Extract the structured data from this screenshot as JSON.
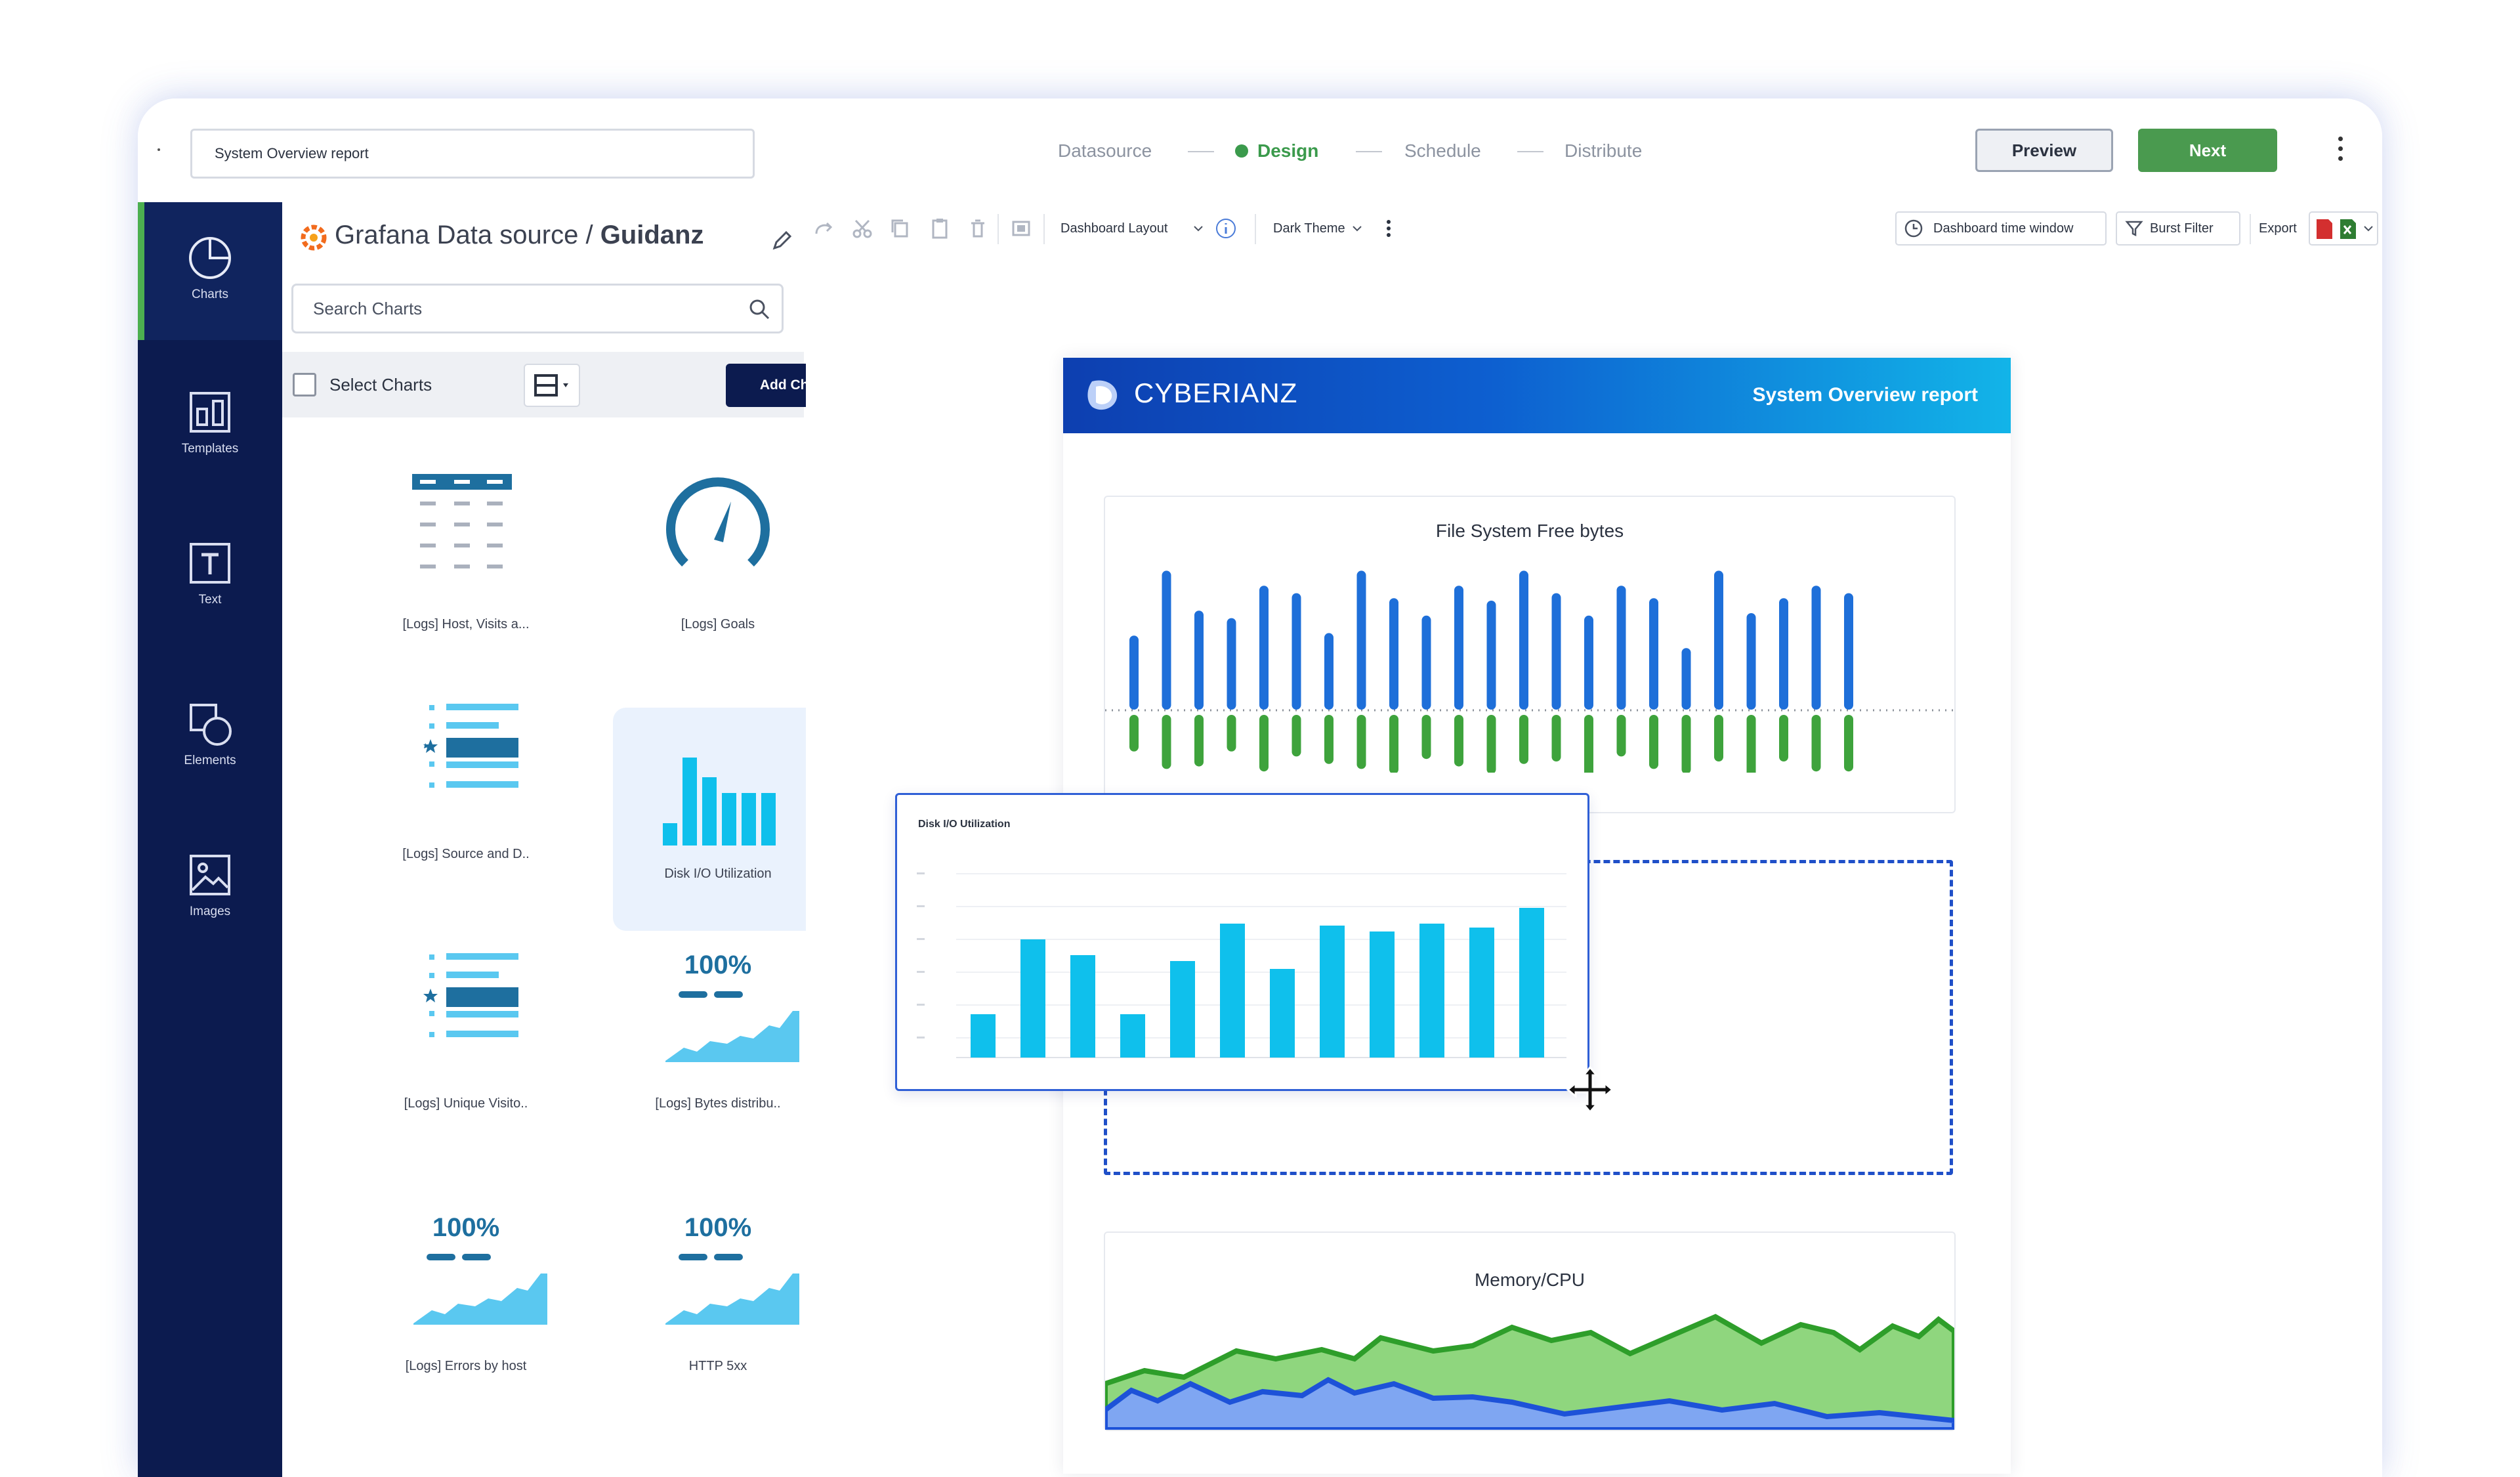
{
  "topbar": {
    "report_name": "System Overview report",
    "steps": [
      "Datasource",
      "Design",
      "Schedule",
      "Distribute"
    ],
    "active_step": "Design",
    "preview_label": "Preview",
    "next_label": "Next"
  },
  "rail": {
    "items": [
      {
        "label": "Charts",
        "icon": "pie-chart-icon",
        "active": true
      },
      {
        "label": "Templates",
        "icon": "template-icon"
      },
      {
        "label": "Text",
        "icon": "text-icon"
      },
      {
        "label": "Elements",
        "icon": "shapes-icon"
      },
      {
        "label": "Images",
        "icon": "image-icon"
      }
    ]
  },
  "panel": {
    "source": "Grafana Data source",
    "source_sep": "/",
    "org": "Guidanz",
    "search_placeholder": "Search Charts",
    "select_label": "Select Charts",
    "add_label": "Add Charts to Report",
    "tiles": [
      {
        "label": "[Logs] Host, Visits a...",
        "icon": "table-chart-icon"
      },
      {
        "label": "[Logs] Goals",
        "icon": "gauge-chart-icon"
      },
      {
        "label": "[Logs] Source and D..",
        "icon": "bar-list-chart-icon"
      },
      {
        "label": "Disk I/O Utilization",
        "icon": "bar-chart-icon",
        "selected": true
      },
      {
        "label": "[Logs] Unique Visito..",
        "icon": "bar-list-chart-icon"
      },
      {
        "label": "[Logs] Bytes distribu..",
        "icon": "stat-area-chart-icon",
        "value": "100%"
      },
      {
        "label": "[Logs] Errors by host",
        "icon": "stat-area-chart-icon",
        "value": "100%"
      },
      {
        "label": "HTTP 5xx",
        "icon": "stat-area-chart-icon",
        "value": "100%"
      }
    ]
  },
  "toolbar": {
    "layout_label": "Dashboard Layout",
    "theme_label": "Dark Theme",
    "time_window_label": "Dashboard time window",
    "burst_label": "Burst Filter",
    "export_label": "Export"
  },
  "report": {
    "brand": "CYBERIANZ",
    "title": "System Overview report",
    "chart1_title": "File System Free bytes",
    "drag_title": "Disk I/O Utilization",
    "chart3_title": "Memory/CPU"
  },
  "colors": {
    "accent_green": "#4a9a4f",
    "navy": "#0c1b4f",
    "bar_blue": "#1e6fd9",
    "bar_green": "#3ea33c",
    "cyan": "#0fc0ec"
  },
  "chart_data": [
    {
      "type": "bar",
      "title": "File System Free bytes",
      "series": [
        {
          "values": [
            52,
            104,
            72,
            66,
            92,
            86,
            54,
            104,
            82,
            68,
            92,
            80,
            104,
            86,
            68,
            92,
            82,
            42,
            104,
            70,
            82,
            92,
            86
          ]
        },
        {
          "values": [
            -22,
            -36,
            -34,
            -22,
            -38,
            -26,
            -32,
            -36,
            -40,
            -28,
            -34,
            -40,
            -32,
            -30,
            -44,
            -26,
            -36,
            -40,
            -30,
            -44,
            -30,
            -38,
            -38
          ]
        }
      ]
    },
    {
      "type": "bar",
      "title": "Disk I/O Utilization",
      "values": [
        22,
        60,
        52,
        22,
        49,
        68,
        45,
        67,
        64,
        68,
        66,
        76
      ]
    },
    {
      "type": "area",
      "title": "Memory/CPU"
    }
  ]
}
